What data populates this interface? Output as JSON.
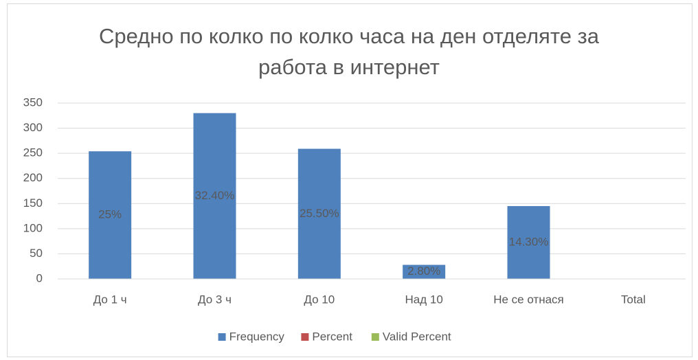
{
  "chart_data": {
    "type": "bar",
    "title": "Средно по колко по колко часа на ден отделяте за работа в интернет",
    "categories": [
      "До 1 ч",
      "До 3 ч",
      "До 10",
      "Над 10",
      "Не се отнася",
      "Total"
    ],
    "series": [
      {
        "name": "Frequency",
        "color": "#4f81bd",
        "values": [
          254,
          330,
          259,
          28,
          145,
          null
        ]
      },
      {
        "name": "Percent",
        "color": "#c0504d",
        "values": [
          0.25,
          0.324,
          0.255,
          0.028,
          0.143,
          null
        ],
        "value_labels": [
          "25%",
          "32.40%",
          "25.50%",
          "2.80%",
          "14.30%",
          null
        ]
      },
      {
        "name": "Valid Percent",
        "color": "#9bbb59",
        "values": [
          null,
          null,
          null,
          null,
          null,
          null
        ]
      }
    ],
    "ylim": [
      0,
      350
    ],
    "yticks": [
      0,
      50,
      100,
      150,
      200,
      250,
      300,
      350
    ],
    "grid": true,
    "legend": "bottom"
  }
}
